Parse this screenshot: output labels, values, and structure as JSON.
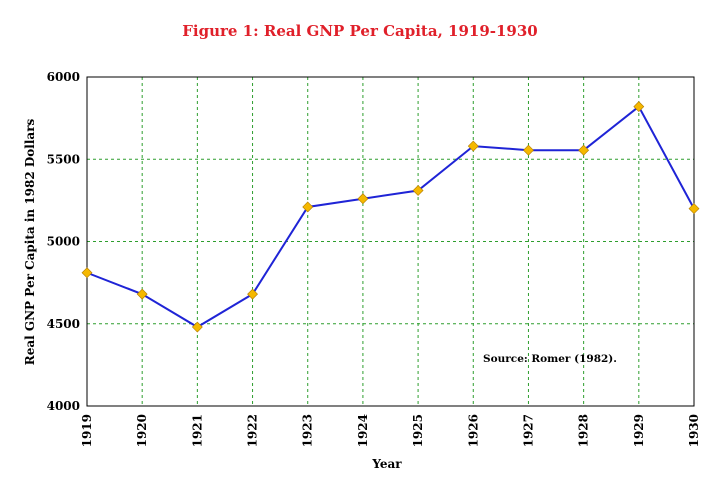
{
  "chart_data": {
    "type": "line",
    "title": "Figure 1: Real GNP Per Capita, 1919-1930",
    "xlabel": "Year",
    "ylabel": "Real GNP Per Capita in 1982 Dollars",
    "categories": [
      "1919",
      "1920",
      "1921",
      "1922",
      "1923",
      "1924",
      "1925",
      "1926",
      "1927",
      "1928",
      "1929",
      "1930"
    ],
    "series": [
      {
        "values": [
          4810,
          4680,
          4480,
          4680,
          5210,
          5260,
          5310,
          5580,
          5555,
          5555,
          5820,
          5200
        ]
      }
    ],
    "ylim": [
      4000,
      6000
    ],
    "yticks": [
      4000,
      4500,
      5000,
      5500,
      6000
    ],
    "ytick_labels": [
      "4000",
      "4500",
      "5000",
      "5500",
      "6000"
    ],
    "grid": "dashed, both axes",
    "annotation": "Source: Romer (1982).",
    "colors": {
      "line": "#1f24d6",
      "marker": "#f5b800",
      "grid": "#2e9e2e",
      "title": "#e0202a"
    }
  }
}
